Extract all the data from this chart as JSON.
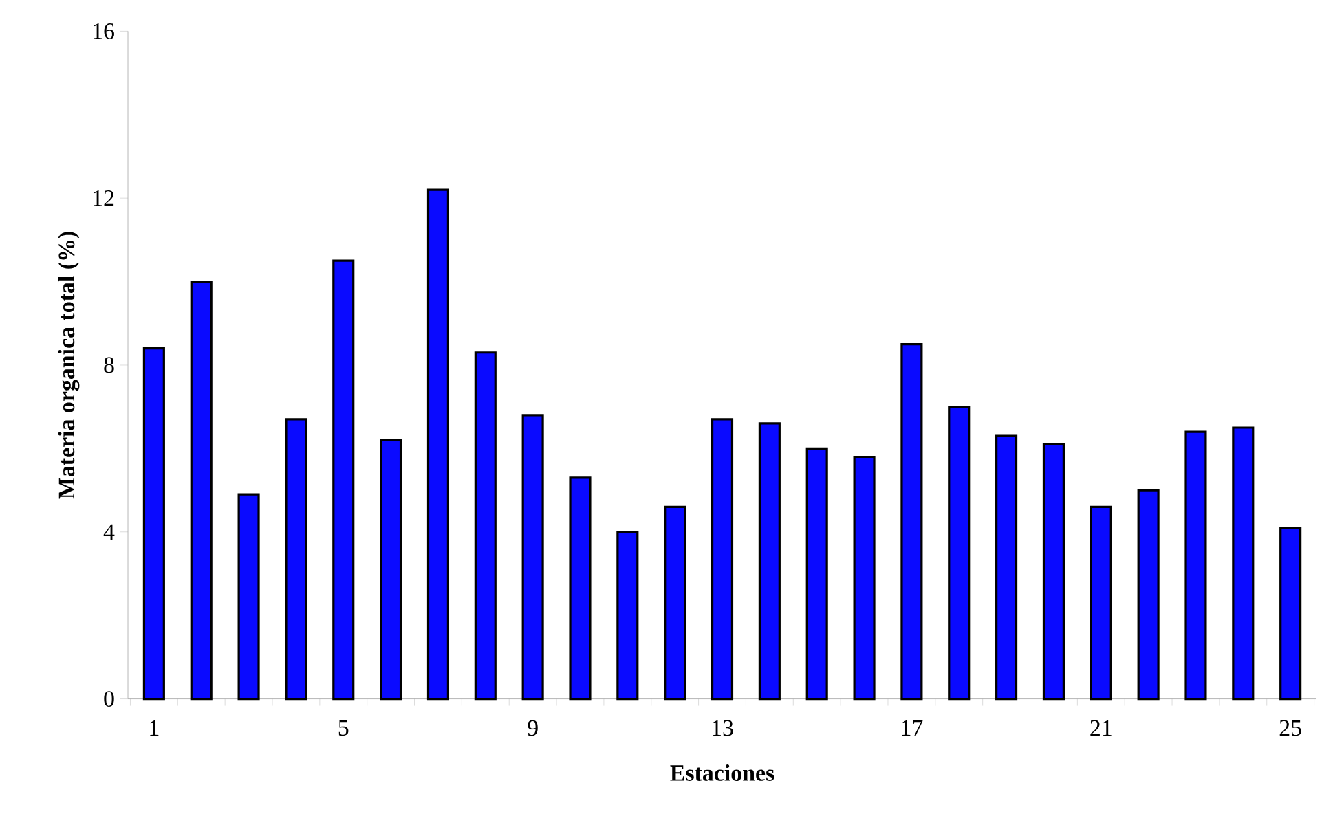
{
  "chart_data": {
    "type": "bar",
    "xlabel": "Estaciones",
    "ylabel": "Materia organica total  (%)",
    "categories": [
      "1",
      null,
      null,
      null,
      "5",
      null,
      null,
      null,
      "9",
      null,
      null,
      null,
      "13",
      null,
      null,
      null,
      "17",
      null,
      null,
      null,
      "21",
      null,
      null,
      null,
      "25"
    ],
    "values": [
      8.4,
      10.0,
      4.9,
      6.7,
      10.5,
      6.2,
      12.2,
      8.3,
      6.8,
      5.3,
      4.0,
      4.6,
      6.7,
      6.6,
      6.0,
      5.8,
      8.5,
      7.0,
      6.3,
      6.1,
      4.6,
      5.0,
      6.4,
      6.5,
      4.1
    ],
    "color": "#0a0aff",
    "ylim": [
      0,
      16
    ],
    "yticks": [
      0,
      4,
      8,
      12,
      16
    ],
    "grid": false
  }
}
